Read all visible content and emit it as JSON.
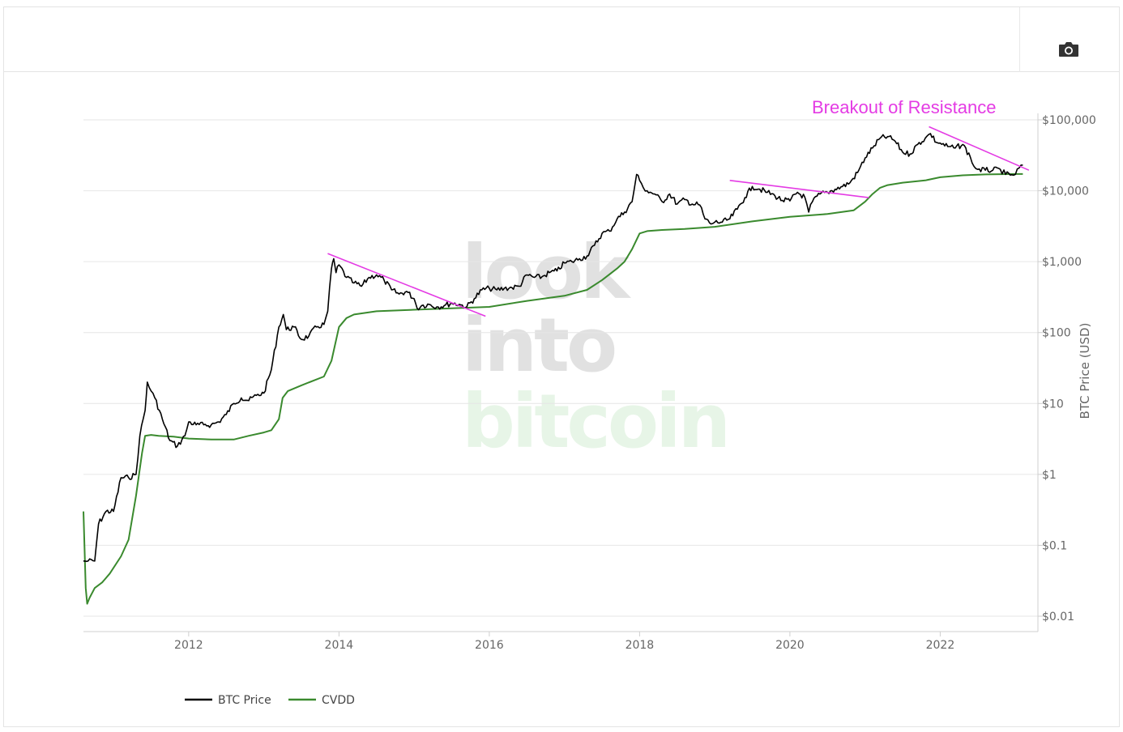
{
  "toolbar": {
    "export_icon": "camera-icon"
  },
  "colors": {
    "btc": "#000000",
    "cvdd": "#3a8a2e",
    "resistance": "#e43be4",
    "grid": "#e6e6e6"
  },
  "watermark": {
    "line1": "look",
    "line2": "into",
    "line3": "bitcoin"
  },
  "annotation": {
    "text": "Breakout of Resistance"
  },
  "legend": {
    "btc_label": "BTC Price",
    "cvdd_label": "CVDD"
  },
  "chart_data": {
    "type": "line",
    "title": "",
    "xlabel": "",
    "ylabel": "BTC Price (USD)",
    "yscale": "log",
    "ylim": [
      0.01,
      100000
    ],
    "xlim": [
      2010.6,
      2023.3
    ],
    "x_ticks": [
      2012,
      2014,
      2016,
      2018,
      2020,
      2022
    ],
    "x_tick_labels": [
      "2012",
      "2014",
      "2016",
      "2018",
      "2020",
      "2022"
    ],
    "y_ticks": [
      0.01,
      0.1,
      1,
      10,
      100,
      1000,
      10000,
      100000
    ],
    "y_tick_labels": [
      "$0.01",
      "$0.1",
      "$1",
      "$10",
      "$100",
      "$1,000",
      "$10,000",
      "$100,000"
    ],
    "series": [
      {
        "name": "BTC Price",
        "x": [
          2010.6,
          2010.62,
          2010.66,
          2010.75,
          2010.8,
          2010.9,
          2011.0,
          2011.1,
          2011.2,
          2011.3,
          2011.35,
          2011.42,
          2011.45,
          2011.5,
          2011.55,
          2011.65,
          2011.75,
          2011.85,
          2011.95,
          2012.0,
          2012.1,
          2012.2,
          2012.3,
          2012.4,
          2012.5,
          2012.6,
          2012.7,
          2012.8,
          2012.9,
          2013.0,
          2013.1,
          2013.2,
          2013.26,
          2013.3,
          2013.4,
          2013.5,
          2013.6,
          2013.7,
          2013.8,
          2013.85,
          2013.9,
          2013.93,
          2013.96,
          2014.0,
          2014.1,
          2014.2,
          2014.3,
          2014.4,
          2014.5,
          2014.6,
          2014.7,
          2014.8,
          2014.9,
          2015.0,
          2015.04,
          2015.1,
          2015.2,
          2015.3,
          2015.4,
          2015.5,
          2015.6,
          2015.7,
          2015.8,
          2015.9,
          2016.0,
          2016.1,
          2016.2,
          2016.3,
          2016.4,
          2016.5,
          2016.6,
          2016.7,
          2016.8,
          2016.9,
          2017.0,
          2017.1,
          2017.2,
          2017.3,
          2017.4,
          2017.5,
          2017.6,
          2017.7,
          2017.8,
          2017.9,
          2017.96,
          2018.0,
          2018.05,
          2018.1,
          2018.2,
          2018.3,
          2018.4,
          2018.5,
          2018.6,
          2018.7,
          2018.8,
          2018.87,
          2018.95,
          2019.0,
          2019.1,
          2019.2,
          2019.3,
          2019.4,
          2019.5,
          2019.6,
          2019.7,
          2019.8,
          2019.9,
          2020.0,
          2020.1,
          2020.2,
          2020.25,
          2020.3,
          2020.4,
          2020.5,
          2020.6,
          2020.7,
          2020.8,
          2020.9,
          2021.0,
          2021.1,
          2021.2,
          2021.3,
          2021.4,
          2021.5,
          2021.6,
          2021.7,
          2021.8,
          2021.87,
          2021.95,
          2022.0,
          2022.1,
          2022.2,
          2022.3,
          2022.4,
          2022.45,
          2022.5,
          2022.6,
          2022.7,
          2022.8,
          2022.87,
          2022.95,
          2023.0,
          2023.05,
          2023.1
        ],
        "values": [
          0.06,
          0.06,
          0.06,
          0.06,
          0.2,
          0.3,
          0.3,
          0.9,
          0.9,
          1.0,
          3.5,
          8.0,
          20.0,
          15.0,
          12.0,
          6.0,
          3.0,
          2.5,
          3.5,
          5.5,
          5.0,
          5.0,
          5.0,
          5.5,
          7.0,
          10.0,
          12.0,
          11.0,
          13.0,
          14.0,
          30.0,
          120.0,
          180.0,
          110.0,
          120.0,
          80.0,
          90.0,
          120.0,
          130.0,
          200.0,
          800.0,
          1100.0,
          700.0,
          900.0,
          600.0,
          500.0,
          450.0,
          600.0,
          650.0,
          550.0,
          400.0,
          350.0,
          380.0,
          300.0,
          220.0,
          240.0,
          250.0,
          230.0,
          240.0,
          260.0,
          250.0,
          230.0,
          300.0,
          400.0,
          420.0,
          400.0,
          420.0,
          430.0,
          450.0,
          650.0,
          600.0,
          610.0,
          700.0,
          740.0,
          960.0,
          1000.0,
          1100.0,
          1200.0,
          1700.0,
          2500.0,
          2700.0,
          4000.0,
          5000.0,
          7000.0,
          17000.0,
          14000.0,
          11000.0,
          10000.0,
          9000.0,
          7000.0,
          9000.0,
          6500.0,
          7500.0,
          6500.0,
          6300.0,
          4000.0,
          3400.0,
          3600.0,
          3600.0,
          4000.0,
          5500.0,
          8000.0,
          11500.0,
          10500.0,
          9500.0,
          8500.0,
          7300.0,
          7200.0,
          9500.0,
          8000.0,
          5000.0,
          7000.0,
          9000.0,
          9500.0,
          10500.0,
          11500.0,
          13000.0,
          18000.0,
          29000.0,
          40000.0,
          55000.0,
          58000.0,
          50000.0,
          35000.0,
          33000.0,
          45000.0,
          55000.0,
          64000.0,
          48000.0,
          47000.0,
          42000.0,
          40000.0,
          45000.0,
          30000.0,
          22000.0,
          20000.0,
          19500.0,
          19500.0,
          20000.0,
          17000.0,
          16800.0,
          17000.0,
          21000.0,
          23000.0
        ]
      },
      {
        "name": "CVDD",
        "x": [
          2010.6,
          2010.63,
          2010.65,
          2010.68,
          2010.75,
          2010.85,
          2010.95,
          2011.1,
          2011.2,
          2011.3,
          2011.38,
          2011.42,
          2011.5,
          2011.6,
          2011.8,
          2012.0,
          2012.3,
          2012.6,
          2012.8,
          2013.0,
          2013.1,
          2013.2,
          2013.25,
          2013.32,
          2013.5,
          2013.8,
          2013.9,
          2014.0,
          2014.1,
          2014.2,
          2014.5,
          2015.0,
          2015.5,
          2016.0,
          2016.5,
          2017.0,
          2017.3,
          2017.5,
          2017.7,
          2017.8,
          2017.9,
          2018.0,
          2018.1,
          2018.3,
          2018.6,
          2019.0,
          2019.5,
          2020.0,
          2020.5,
          2020.85,
          2021.0,
          2021.1,
          2021.2,
          2021.3,
          2021.5,
          2021.8,
          2022.0,
          2022.3,
          2022.6,
          2023.0,
          2023.1
        ],
        "values": [
          0.3,
          0.025,
          0.015,
          0.018,
          0.025,
          0.03,
          0.04,
          0.07,
          0.12,
          0.5,
          2.0,
          3.5,
          3.6,
          3.5,
          3.4,
          3.2,
          3.1,
          3.1,
          3.5,
          3.9,
          4.2,
          6.0,
          12.0,
          15.0,
          18.0,
          24.0,
          40.0,
          120.0,
          160.0,
          180.0,
          200.0,
          210.0,
          220.0,
          230.0,
          280.0,
          330.0,
          400.0,
          550.0,
          800.0,
          1000.0,
          1500.0,
          2500.0,
          2700.0,
          2800.0,
          2900.0,
          3100.0,
          3700.0,
          4300.0,
          4700.0,
          5300.0,
          7000.0,
          9000.0,
          11000.0,
          12000.0,
          13000.0,
          14000.0,
          15500.0,
          16500.0,
          17000.0,
          17200.0,
          17200.0
        ]
      }
    ],
    "annotations": [
      {
        "type": "resistance-line",
        "from": [
          2013.85,
          1300
        ],
        "to": [
          2015.95,
          170
        ]
      },
      {
        "type": "resistance-line",
        "from": [
          2019.2,
          14000
        ],
        "to": [
          2021.05,
          8000
        ]
      },
      {
        "type": "resistance-line",
        "from": [
          2021.85,
          80000
        ],
        "to": [
          2023.18,
          19500
        ]
      }
    ],
    "legend_position": "bottom-left",
    "grid": true
  }
}
